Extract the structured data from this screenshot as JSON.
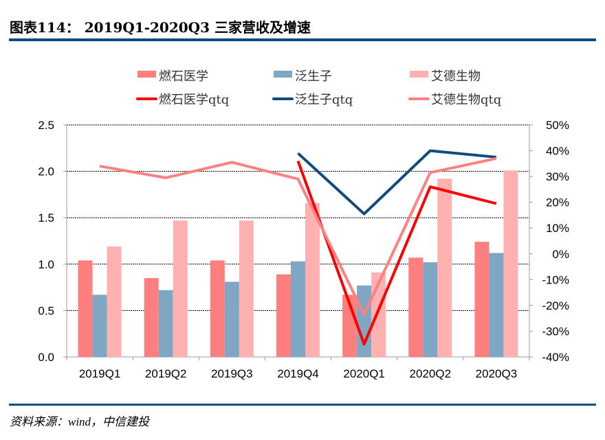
{
  "title": "图表114：  2019Q1-2020Q3 三家营收及增速",
  "source": "资料来源：wind，中信建投",
  "chart_data": {
    "type": "bar+line",
    "categories": [
      "2019Q1",
      "2019Q2",
      "2019Q3",
      "2019Q4",
      "2020Q1",
      "2020Q2",
      "2020Q3"
    ],
    "left_axis": {
      "ylim": [
        0,
        2.5
      ],
      "ticks": [
        "0.0",
        "0.5",
        "1.0",
        "1.5",
        "2.0",
        "2.5"
      ]
    },
    "right_axis": {
      "ylim": [
        -40,
        50
      ],
      "ticks": [
        "-40%",
        "-30%",
        "-20%",
        "-10%",
        "0%",
        "10%",
        "20%",
        "30%",
        "40%",
        "50%"
      ]
    },
    "grid": "horizontal dotted",
    "legend_position": "top",
    "bar_series": [
      {
        "name": "燃石医学",
        "color": "#ff7f7f",
        "values": [
          1.04,
          0.85,
          1.04,
          0.89,
          0.67,
          1.07,
          1.24
        ]
      },
      {
        "name": "泛生子",
        "color": "#7fa6c2",
        "values": [
          0.67,
          0.72,
          0.81,
          1.03,
          0.77,
          1.02,
          1.12
        ]
      },
      {
        "name": "艾德生物",
        "color": "#ffb0b0",
        "values": [
          1.19,
          1.47,
          1.47,
          1.66,
          0.91,
          1.92,
          2.01
        ]
      }
    ],
    "line_series": [
      {
        "name": "燃石医学qtq",
        "color": "#ff0000",
        "values": [
          null,
          null,
          null,
          36,
          -35,
          26,
          19.5
        ]
      },
      {
        "name": "泛生子qtq",
        "color": "#0d4c7d",
        "values": [
          null,
          null,
          null,
          39,
          15.5,
          40,
          37.5
        ]
      },
      {
        "name": "艾德生物qtq",
        "color": "#ff8080",
        "values": [
          34,
          29.5,
          35.5,
          29,
          -23.5,
          31.5,
          37
        ]
      }
    ]
  }
}
